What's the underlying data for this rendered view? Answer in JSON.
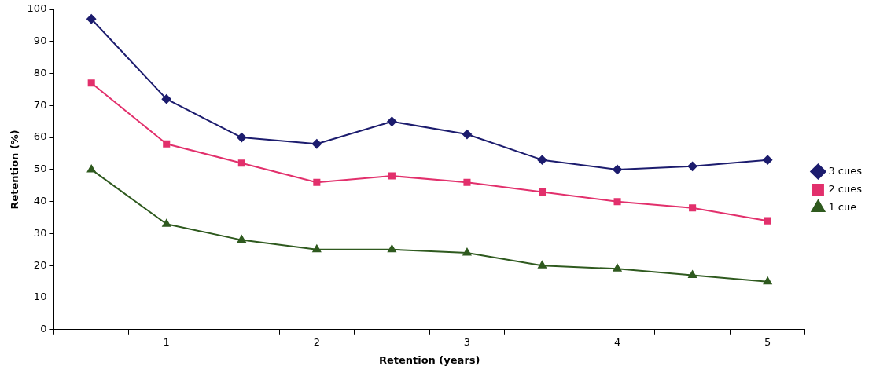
{
  "chart_data": {
    "type": "line",
    "xlabel": "Retention (years)",
    "ylabel": "Retention (%)",
    "categories": [
      null,
      "1",
      null,
      "2",
      null,
      "3",
      null,
      "4",
      null,
      "5"
    ],
    "ylim": [
      0,
      100
    ],
    "yticks": [
      0,
      10,
      20,
      30,
      40,
      50,
      60,
      70,
      80,
      90,
      100
    ],
    "grid": false,
    "legend": "right",
    "series": [
      {
        "name": "3 cues",
        "color": "#1c1c6e",
        "marker": "diamond",
        "values": [
          97,
          72,
          60,
          58,
          65,
          61,
          53,
          50,
          51,
          53
        ]
      },
      {
        "name": "2 cues",
        "color": "#e2306c",
        "marker": "square",
        "values": [
          77,
          58,
          52,
          46,
          48,
          46,
          43,
          40,
          38,
          34
        ]
      },
      {
        "name": "1 cue",
        "color": "#2f5a1f",
        "marker": "triangle",
        "values": [
          50,
          33,
          28,
          25,
          25,
          24,
          20,
          19,
          17,
          15
        ]
      }
    ]
  }
}
